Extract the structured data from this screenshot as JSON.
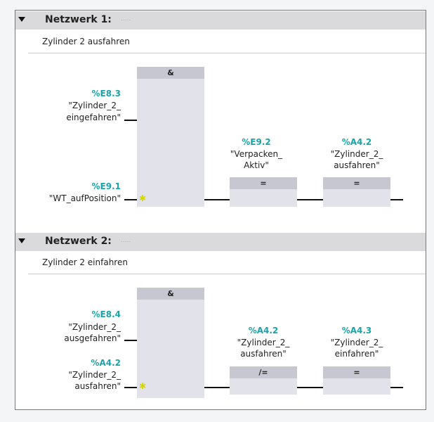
{
  "networks": [
    {
      "title": "Netzwerk 1:",
      "dots": ".....",
      "comment": "Zylinder 2 ausfahren",
      "gate": "&",
      "inputs": [
        {
          "addr": "%E8.3",
          "l1": "\"Zylinder_2_",
          "l2": "eingefahren\""
        },
        {
          "addr": "%E9.1",
          "l1": "",
          "l2": "\"WT_aufPosition\""
        }
      ],
      "coils": [
        {
          "addr": "%E9.2",
          "l1": "\"Verpacken_",
          "l2": "Aktiv\"",
          "op": "="
        },
        {
          "addr": "%A4.2",
          "l1": "\"Zylinder_2_",
          "l2": "ausfahren\"",
          "op": "="
        }
      ]
    },
    {
      "title": "Netzwerk 2:",
      "dots": ".....",
      "comment": "Zylinder 2 einfahren",
      "gate": "&",
      "inputs": [
        {
          "addr": "%E8.4",
          "l1": "\"Zylinder_2_",
          "l2": "ausgefahren\""
        },
        {
          "addr": "%A4.2",
          "l1": "\"Zylinder_2_",
          "l2": "ausfahren\""
        }
      ],
      "coils": [
        {
          "addr": "%A4.2",
          "l1": "\"Zylinder_2_",
          "l2": "ausfahren\"",
          "op": "/="
        },
        {
          "addr": "%A4.3",
          "l1": "\"Zylinder_2_",
          "l2": "einfahren\"",
          "op": "="
        }
      ]
    }
  ],
  "colors": {
    "address": "#1aa3a8",
    "box": "#e2e2ea",
    "box_header": "#c6c7d1",
    "network_header": "#dadadd"
  }
}
